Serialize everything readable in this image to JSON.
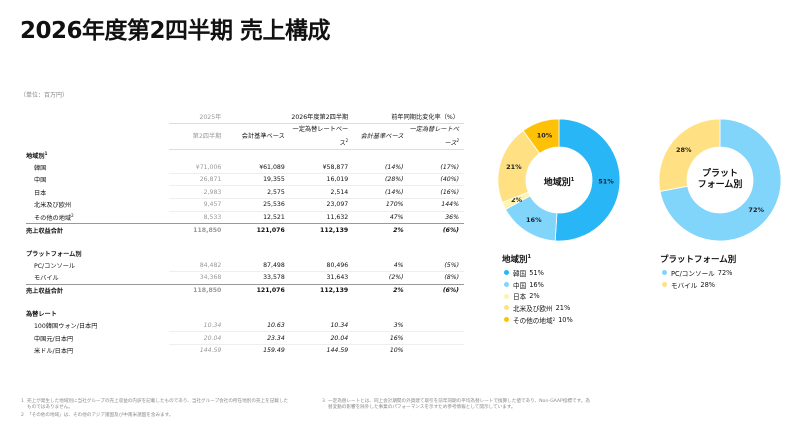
{
  "title": "2026年度第2四半期 売上構成",
  "unit": "（単位：百万円）",
  "table": {
    "prev_header": [
      "2025年",
      "第2四半期"
    ],
    "curr_header": "2026年度第2四半期",
    "yoy_header": "前年同期比変化率（%）",
    "sub_accounting": "会計基準ベース",
    "sub_fx": "一定為替レートベース",
    "sub_fx_sup": "2",
    "sections": [
      {
        "title": "地域別",
        "sup": "1",
        "rows": [
          {
            "label": "韓国",
            "prev": "¥71,006",
            "acc": "¥61,089",
            "fx": "¥58,877",
            "yoy_acc": "(14%)",
            "yoy_fx": "(17%)"
          },
          {
            "label": "中国",
            "prev": "26,871",
            "acc": "19,355",
            "fx": "16,019",
            "yoy_acc": "(28%)",
            "yoy_fx": "(40%)"
          },
          {
            "label": "日本",
            "prev": "2,983",
            "acc": "2,575",
            "fx": "2,514",
            "yoy_acc": "(14%)",
            "yoy_fx": "(16%)"
          },
          {
            "label": "北米及び欧州",
            "prev": "9,457",
            "acc": "25,536",
            "fx": "23,097",
            "yoy_acc": "170%",
            "yoy_fx": "144%"
          },
          {
            "label": "その他の地域",
            "sup": "2",
            "prev": "8,533",
            "acc": "12,521",
            "fx": "11,632",
            "yoy_acc": "47%",
            "yoy_fx": "36%"
          }
        ],
        "total": {
          "label": "売上収益合計",
          "prev": "118,850",
          "acc": "121,076",
          "fx": "112,139",
          "yoy_acc": "2%",
          "yoy_fx": "(6%)"
        }
      },
      {
        "title": "プラットフォーム別",
        "rows": [
          {
            "label": "PC/コンソール",
            "prev": "84,482",
            "acc": "87,498",
            "fx": "80,496",
            "yoy_acc": "4%",
            "yoy_fx": "(5%)"
          },
          {
            "label": "モバイル",
            "prev": "34,368",
            "acc": "33,578",
            "fx": "31,643",
            "yoy_acc": "(2%)",
            "yoy_fx": "(8%)"
          }
        ],
        "total": {
          "label": "売上収益合計",
          "prev": "118,850",
          "acc": "121,076",
          "fx": "112,139",
          "yoy_acc": "2%",
          "yoy_fx": "(6%)"
        }
      },
      {
        "title": "為替レート",
        "rows": [
          {
            "label": "100韓国ウォン/日本円",
            "prev": "10.34",
            "acc": "10.63",
            "fx": "10.34",
            "yoy_acc": "3%",
            "yoy_fx": ""
          },
          {
            "label": "中国元/日本円",
            "prev": "20.04",
            "acc": "23.34",
            "fx": "20.04",
            "yoy_acc": "16%",
            "yoy_fx": ""
          },
          {
            "label": "米ドル/日本円",
            "prev": "144.59",
            "acc": "159.49",
            "fx": "144.59",
            "yoy_acc": "10%",
            "yoy_fx": ""
          }
        ]
      }
    ]
  },
  "chart_data": [
    {
      "type": "pie",
      "center_label": "地域別",
      "center_sup": "1",
      "legend_title": "地域別",
      "legend_title_sup": "1",
      "slices": [
        {
          "label": "韓国",
          "value": 51,
          "text": "51%",
          "color": "#29B6F6"
        },
        {
          "label": "中国",
          "value": 16,
          "text": "16%",
          "color": "#81D4FA"
        },
        {
          "label": "日本",
          "value": 2,
          "text": "2%",
          "color": "#FFF3B0"
        },
        {
          "label": "北米及び欧州",
          "value": 21,
          "text": "21%",
          "color": "#FFE082"
        },
        {
          "label": "その他の地域",
          "sup": "2",
          "value": 10,
          "text": "10%",
          "color": "#FFC107"
        }
      ]
    },
    {
      "type": "pie",
      "center_label": "プラットフォーム別",
      "legend_title": "プラットフォーム別",
      "slices": [
        {
          "label": "PC/コンソール",
          "value": 72,
          "text": "72%",
          "color": "#81D4FA"
        },
        {
          "label": "モバイル",
          "value": 28,
          "text": "28%",
          "color": "#FFE082"
        }
      ]
    }
  ],
  "center_lines": {
    "region": [
      "地域別"
    ],
    "platform": [
      "プラット",
      "フォーム別"
    ]
  },
  "footnotes": [
    {
      "n": "1",
      "text": "売上が発生した地域別に当社グループの売上収益の内訳を記載したものであり、当社グループ会社の所在地別の売上を記載したものではありません。"
    },
    {
      "n": "2",
      "text": "「その他の地域」は、その他のアジア諸国及び中南米諸国を含みます。"
    },
    {
      "n": "3",
      "text": "一定為替レートとは、同上会計期間の外貨建て取引を前年同期の平均為替レートで換算した値であり、Non-GAAP指標です。為替変動の影響を除外した事業のパフォーマンスを示すため参考情報として開示しています。"
    }
  ]
}
